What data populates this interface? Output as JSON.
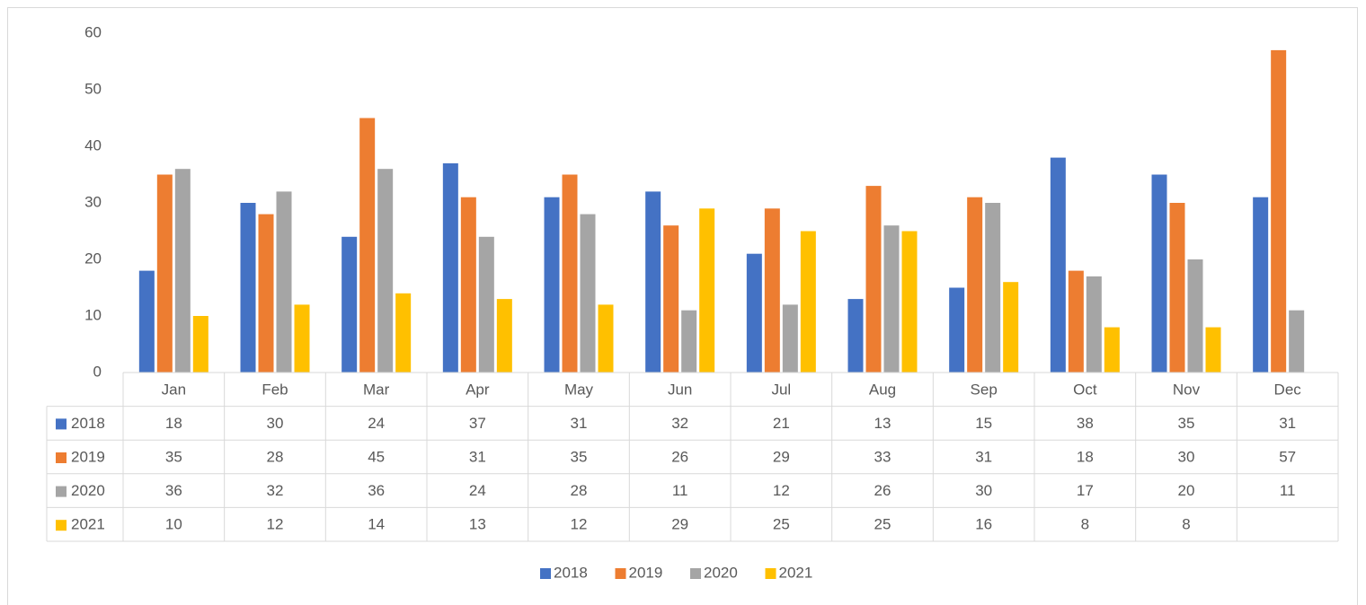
{
  "chart_data": {
    "type": "bar",
    "categories": [
      "Jan",
      "Feb",
      "Mar",
      "Apr",
      "May",
      "Jun",
      "Jul",
      "Aug",
      "Sep",
      "Oct",
      "Nov",
      "Dec"
    ],
    "series": [
      {
        "name": "2018",
        "color": "#4472c4",
        "values": [
          18,
          30,
          24,
          37,
          31,
          32,
          21,
          13,
          15,
          38,
          35,
          31
        ]
      },
      {
        "name": "2019",
        "color": "#ed7d31",
        "values": [
          35,
          28,
          45,
          31,
          35,
          26,
          29,
          33,
          31,
          18,
          30,
          57
        ]
      },
      {
        "name": "2020",
        "color": "#a5a5a5",
        "values": [
          36,
          32,
          36,
          24,
          28,
          11,
          12,
          26,
          30,
          17,
          20,
          11
        ]
      },
      {
        "name": "2021",
        "color": "#ffc000",
        "values": [
          10,
          12,
          14,
          13,
          12,
          29,
          25,
          25,
          16,
          8,
          8,
          null
        ]
      }
    ],
    "ylim": [
      0,
      60
    ],
    "yticks": [
      0,
      10,
      20,
      30,
      40,
      50,
      60
    ],
    "grid": false,
    "data_table": true,
    "legend": "bottom"
  }
}
